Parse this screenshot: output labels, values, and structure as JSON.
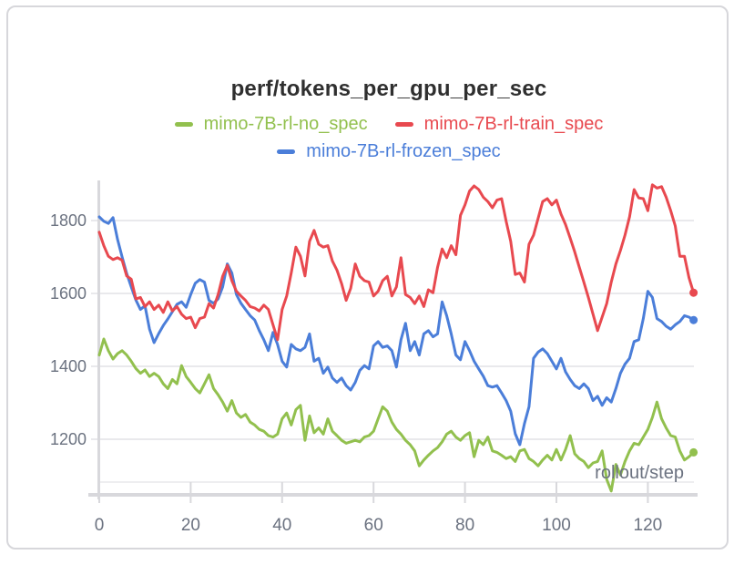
{
  "chart_data": {
    "type": "line",
    "title": "perf/tokens_per_gpu_per_sec",
    "xlabel": "rollout/step",
    "ylabel": "",
    "x_ticks": [
      0,
      20,
      40,
      60,
      80,
      100,
      120
    ],
    "y_ticks": [
      1200,
      1400,
      1600,
      1800
    ],
    "x_range": [
      0,
      130
    ],
    "ylim": [
      1080,
      1910
    ],
    "grid": "horizontal",
    "legend_position": "top",
    "legend_order": [
      0,
      2,
      1
    ],
    "colors": {
      "axis_text": "#6b7280",
      "grid": "#e9e9ec",
      "axis_line": "#d8d8dc",
      "title_text": "#2f2f2f"
    },
    "series": [
      {
        "name": "mimo-7B-rl-no_spec",
        "color": "#92c04e",
        "values": [
          1431,
          1475,
          1443,
          1420,
          1435,
          1443,
          1431,
          1414,
          1394,
          1381,
          1390,
          1372,
          1381,
          1372,
          1352,
          1339,
          1364,
          1352,
          1402,
          1372,
          1356,
          1339,
          1327,
          1352,
          1377,
          1339,
          1322,
          1302,
          1277,
          1306,
          1272,
          1260,
          1268,
          1247,
          1239,
          1227,
          1222,
          1210,
          1206,
          1214,
          1256,
          1272,
          1239,
          1281,
          1293,
          1197,
          1264,
          1218,
          1231,
          1214,
          1256,
          1222,
          1210,
          1197,
          1189,
          1193,
          1197,
          1193,
          1206,
          1210,
          1222,
          1256,
          1289,
          1277,
          1247,
          1227,
          1214,
          1197,
          1185,
          1168,
          1127,
          1143,
          1156,
          1168,
          1177,
          1193,
          1214,
          1222,
          1206,
          1197,
          1210,
          1218,
          1152,
          1197,
          1185,
          1206,
          1168,
          1164,
          1156,
          1147,
          1152,
          1139,
          1168,
          1172,
          1147,
          1139,
          1127,
          1143,
          1156,
          1143,
          1172,
          1143,
          1172,
          1210,
          1160,
          1147,
          1139,
          1122,
          1135,
          1139,
          1168,
          1090,
          1058,
          1131,
          1102,
          1139,
          1168,
          1189,
          1185,
          1206,
          1227,
          1260,
          1302,
          1256,
          1231,
          1210,
          1206,
          1168,
          1143,
          1152,
          1164
        ]
      },
      {
        "name": "mimo-7B-rl-frozen_spec",
        "color": "#4b7ed9",
        "values": [
          1810,
          1798,
          1792,
          1808,
          1748,
          1700,
          1655,
          1618,
          1582,
          1556,
          1566,
          1502,
          1465,
          1490,
          1512,
          1530,
          1550,
          1570,
          1577,
          1562,
          1597,
          1628,
          1638,
          1631,
          1581,
          1573,
          1585,
          1618,
          1681,
          1656,
          1597,
          1573,
          1556,
          1539,
          1527,
          1498,
          1473,
          1443,
          1493,
          1460,
          1414,
          1398,
          1460,
          1448,
          1443,
          1452,
          1489,
          1414,
          1422,
          1381,
          1398,
          1368,
          1356,
          1368,
          1347,
          1335,
          1356,
          1389,
          1402,
          1393,
          1456,
          1468,
          1452,
          1456,
          1443,
          1398,
          1473,
          1518,
          1443,
          1468,
          1431,
          1489,
          1498,
          1481,
          1489,
          1577,
          1539,
          1489,
          1431,
          1418,
          1468,
          1443,
          1414,
          1393,
          1373,
          1347,
          1343,
          1347,
          1327,
          1306,
          1277,
          1215,
          1185,
          1243,
          1289,
          1422,
          1439,
          1448,
          1435,
          1414,
          1393,
          1422,
          1385,
          1364,
          1347,
          1339,
          1352,
          1339,
          1306,
          1318,
          1293,
          1314,
          1302,
          1339,
          1381,
          1406,
          1422,
          1468,
          1473,
          1531,
          1606,
          1589,
          1531,
          1523,
          1510,
          1502,
          1514,
          1523,
          1539,
          1535,
          1527
        ]
      },
      {
        "name": "mimo-7B-rl-train_spec",
        "color": "#e8494f",
        "values": [
          1768,
          1731,
          1702,
          1693,
          1698,
          1691,
          1648,
          1639,
          1585,
          1589,
          1564,
          1577,
          1556,
          1568,
          1548,
          1577,
          1552,
          1564,
          1543,
          1531,
          1535,
          1506,
          1531,
          1535,
          1572,
          1560,
          1597,
          1647,
          1677,
          1635,
          1606,
          1593,
          1581,
          1564,
          1560,
          1552,
          1568,
          1556,
          1514,
          1473,
          1556,
          1593,
          1656,
          1727,
          1702,
          1648,
          1743,
          1773,
          1735,
          1727,
          1731,
          1689,
          1664,
          1627,
          1581,
          1614,
          1681,
          1647,
          1635,
          1631,
          1593,
          1606,
          1635,
          1647,
          1593,
          1618,
          1698,
          1597,
          1589,
          1572,
          1593,
          1564,
          1610,
          1602,
          1672,
          1722,
          1698,
          1731,
          1706,
          1814,
          1843,
          1881,
          1895,
          1885,
          1864,
          1852,
          1835,
          1856,
          1860,
          1798,
          1743,
          1652,
          1656,
          1631,
          1735,
          1760,
          1806,
          1852,
          1860,
          1843,
          1856,
          1818,
          1789,
          1752,
          1714,
          1672,
          1631,
          1589,
          1543,
          1498,
          1535,
          1572,
          1631,
          1681,
          1718,
          1760,
          1810,
          1885,
          1862,
          1860,
          1827,
          1898,
          1889,
          1893,
          1864,
          1827,
          1785,
          1702,
          1702,
          1643,
          1602
        ]
      }
    ]
  }
}
